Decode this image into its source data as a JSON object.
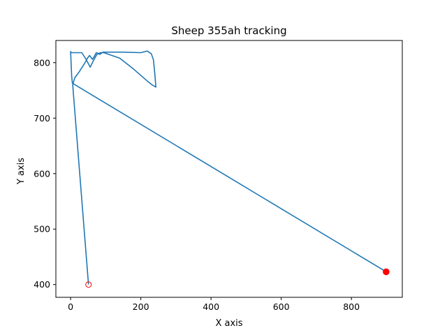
{
  "chart_data": {
    "type": "line",
    "title": "Sheep 355ah tracking",
    "xlabel": "X axis",
    "ylabel": "Y axis",
    "xlim": [
      -42,
      945
    ],
    "ylim": [
      377,
      840
    ],
    "xticks": [
      0,
      200,
      400,
      600,
      800
    ],
    "yticks": [
      400,
      500,
      600,
      700,
      800
    ],
    "grid": false,
    "colors": {
      "line": "#1f77b4",
      "start_marker": "#ff0000",
      "end_marker": "#ff0000"
    },
    "series": [
      {
        "points": [
          [
            51,
            400
          ],
          [
            6,
            760
          ],
          [
            12,
            773
          ],
          [
            18,
            778
          ],
          [
            25,
            784
          ],
          [
            31,
            790
          ],
          [
            36,
            795
          ],
          [
            42,
            801
          ],
          [
            48,
            808
          ],
          [
            54,
            813
          ],
          [
            62,
            806
          ],
          [
            68,
            812
          ],
          [
            73,
            818
          ],
          [
            78,
            817
          ],
          [
            83,
            815
          ],
          [
            88,
            817
          ],
          [
            92,
            819
          ],
          [
            150,
            819
          ],
          [
            200,
            818
          ],
          [
            218,
            821
          ],
          [
            230,
            816
          ],
          [
            236,
            805
          ],
          [
            240,
            779
          ],
          [
            243,
            756
          ],
          [
            232,
            760
          ],
          [
            220,
            766
          ],
          [
            180,
            788
          ],
          [
            140,
            808
          ],
          [
            95,
            818
          ],
          [
            85,
            818
          ],
          [
            75,
            815
          ],
          [
            66,
            805
          ],
          [
            56,
            792
          ],
          [
            44,
            806
          ],
          [
            32,
            818
          ],
          [
            2,
            818
          ],
          [
            0,
            820
          ],
          [
            3,
            776
          ],
          [
            5,
            763
          ],
          [
            899,
            423
          ]
        ]
      }
    ],
    "markers": {
      "start": {
        "x": 51,
        "y": 400,
        "style": "hollow-circle"
      },
      "end": {
        "x": 899,
        "y": 423,
        "style": "filled-circle"
      }
    }
  }
}
